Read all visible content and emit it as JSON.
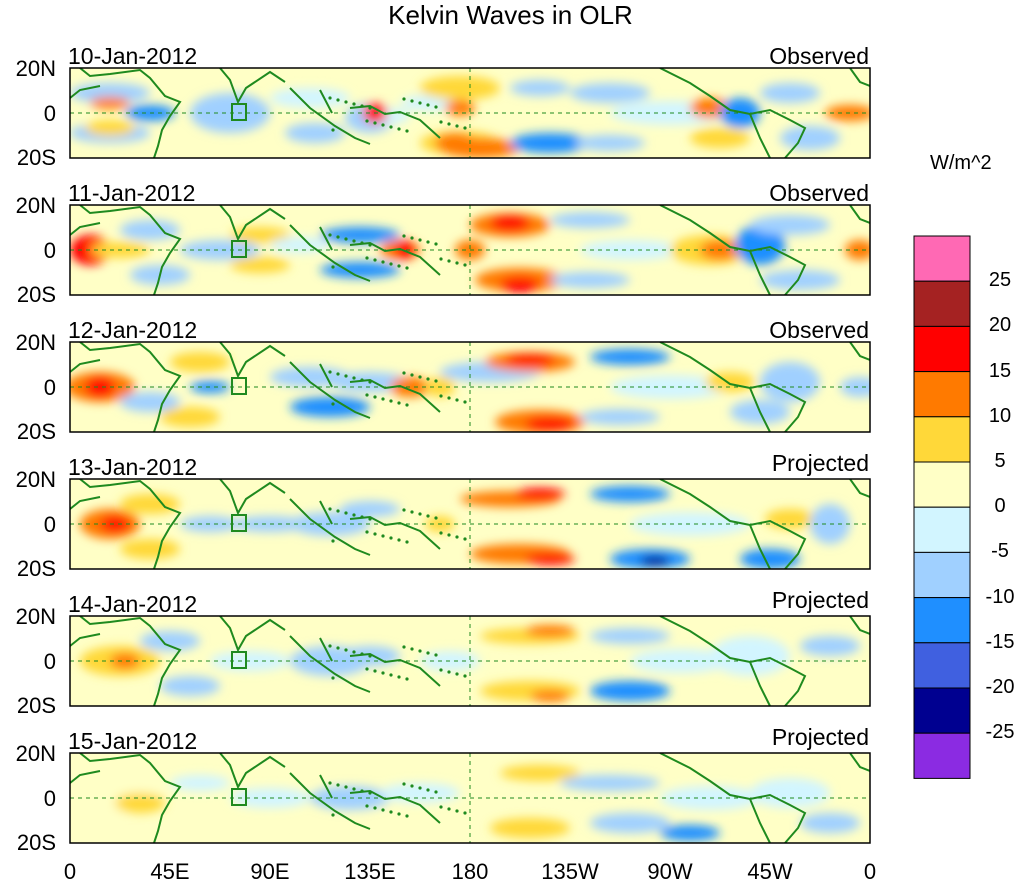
{
  "title": "Kelvin Waves in OLR",
  "units": "W/m^2",
  "panels": [
    {
      "date": "10-Jan-2012",
      "type": "Observed"
    },
    {
      "date": "11-Jan-2012",
      "type": "Observed"
    },
    {
      "date": "12-Jan-2012",
      "type": "Observed"
    },
    {
      "date": "13-Jan-2012",
      "type": "Projected"
    },
    {
      "date": "14-Jan-2012",
      "type": "Projected"
    },
    {
      "date": "15-Jan-2012",
      "type": "Projected"
    }
  ],
  "lat_labels": [
    "20N",
    "0",
    "20S"
  ],
  "lon_labels": [
    "0",
    "45E",
    "90E",
    "135E",
    "180",
    "135W",
    "90W",
    "45W",
    "0"
  ],
  "colorbar": {
    "ticks": [
      "25",
      "20",
      "15",
      "10",
      "5",
      "0",
      "-5",
      "-10",
      "-15",
      "-20",
      "-25"
    ],
    "colors": [
      "#ff69b4",
      "#a52222",
      "#ff0000",
      "#ff7a00",
      "#ffd839",
      "#ffffc6",
      "#d2f5ff",
      "#a0d0ff",
      "#1f8fff",
      "#4060e0",
      "#000090",
      "#8b2be2"
    ]
  },
  "colors": {
    "coast": "#1f8a1f",
    "frame": "#000000"
  }
}
